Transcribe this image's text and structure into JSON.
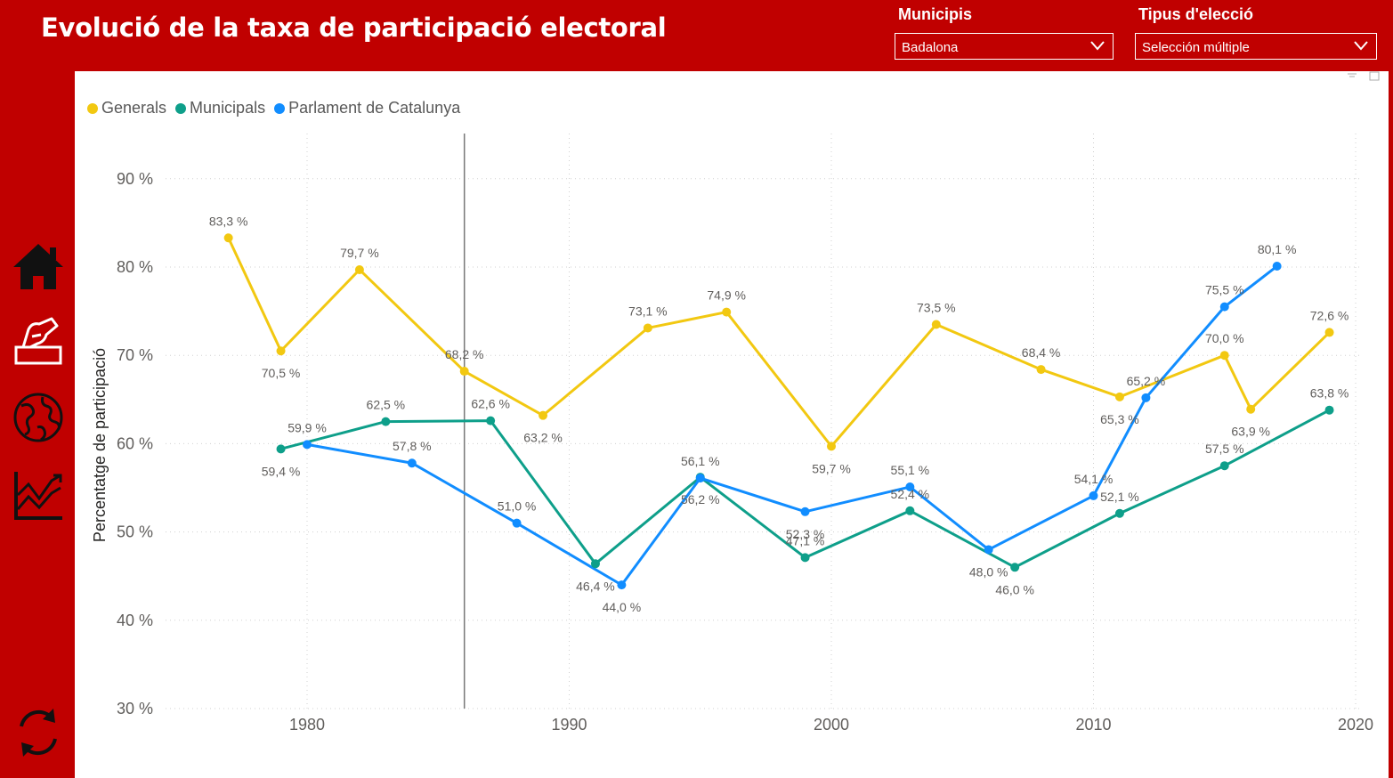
{
  "header": {
    "title": "Evolució de la taxa de participació electoral",
    "municipis_label": "Municipis",
    "municipis_value": "Badalona",
    "tipus_label": "Tipus d'elecció",
    "tipus_value": "Selección múltiple"
  },
  "sidebar": {
    "items": [
      {
        "icon": "home-icon"
      },
      {
        "icon": "ballot-vote-icon"
      },
      {
        "icon": "globe-icon"
      },
      {
        "icon": "chart-trend-icon"
      },
      {
        "icon": "refresh-icon"
      }
    ]
  },
  "colors": {
    "accent": "#c00000",
    "generals": "#F2C811",
    "municipals": "#0E9F8A",
    "parlament": "#118DFF"
  },
  "chart_data": {
    "type": "line",
    "title": "",
    "xlabel": "",
    "ylabel": "Percentatge de participació",
    "xlim": [
      1974,
      2020
    ],
    "ylim": [
      30,
      90
    ],
    "x_ticks": [
      1980,
      1990,
      2000,
      2010,
      2020
    ],
    "y_ticks": [
      30,
      40,
      50,
      60,
      70,
      80,
      90
    ],
    "y_tick_labels": [
      "30 %",
      "40 %",
      "50 %",
      "60 %",
      "70 %",
      "80 %",
      "90 %"
    ],
    "grid": true,
    "legend": "top-left",
    "reference_line_x": 1986,
    "series": [
      {
        "name": "Generals",
        "color": "#F2C811",
        "points": [
          {
            "x": 1977,
            "y": 83.3,
            "label": "83,3 %"
          },
          {
            "x": 1979,
            "y": 70.5,
            "label": "70,5 %"
          },
          {
            "x": 1982,
            "y": 79.7,
            "label": "79,7 %"
          },
          {
            "x": 1986,
            "y": 68.2,
            "label": "68,2 %"
          },
          {
            "x": 1989,
            "y": 63.2,
            "label": "63,2 %"
          },
          {
            "x": 1993,
            "y": 73.1,
            "label": "73,1 %"
          },
          {
            "x": 1996,
            "y": 74.9,
            "label": "74,9 %"
          },
          {
            "x": 2000,
            "y": 59.7,
            "label": "59,7 %"
          },
          {
            "x": 2004,
            "y": 73.5,
            "label": "73,5 %"
          },
          {
            "x": 2008,
            "y": 68.4,
            "label": "68,4 %"
          },
          {
            "x": 2011,
            "y": 65.3,
            "label": "65,3 %"
          },
          {
            "x": 2015,
            "y": 70.0,
            "label": "70,0 %"
          },
          {
            "x": 2016,
            "y": 63.9,
            "label": "63,9 %"
          },
          {
            "x": 2019,
            "y": 72.6,
            "label": "72,6 %"
          }
        ]
      },
      {
        "name": "Municipals",
        "color": "#0E9F8A",
        "points": [
          {
            "x": 1979,
            "y": 59.4,
            "label": "59,4 %"
          },
          {
            "x": 1983,
            "y": 62.5,
            "label": "62,5 %"
          },
          {
            "x": 1987,
            "y": 62.6,
            "label": "62,6 %"
          },
          {
            "x": 1991,
            "y": 46.4,
            "label": "46,4 %"
          },
          {
            "x": 1995,
            "y": 56.2,
            "label": "56,2 %"
          },
          {
            "x": 1999,
            "y": 47.1,
            "label": "47,1 %"
          },
          {
            "x": 2003,
            "y": 52.4,
            "label": "52,4 %"
          },
          {
            "x": 2007,
            "y": 46.0,
            "label": "46,0 %"
          },
          {
            "x": 2011,
            "y": 52.1,
            "label": "52,1 %"
          },
          {
            "x": 2015,
            "y": 57.5,
            "label": "57,5 %"
          },
          {
            "x": 2019,
            "y": 63.8,
            "label": "63,8 %"
          }
        ]
      },
      {
        "name": "Parlament de Catalunya",
        "color": "#118DFF",
        "points": [
          {
            "x": 1980,
            "y": 59.9,
            "label": "59,9 %"
          },
          {
            "x": 1984,
            "y": 57.8,
            "label": "57,8 %"
          },
          {
            "x": 1988,
            "y": 51.0,
            "label": "51,0 %"
          },
          {
            "x": 1992,
            "y": 44.0,
            "label": "44,0 %"
          },
          {
            "x": 1995,
            "y": 56.1,
            "label": "56,1 %"
          },
          {
            "x": 1999,
            "y": 52.3,
            "label": "52,3 %"
          },
          {
            "x": 2003,
            "y": 55.1,
            "label": "55,1 %"
          },
          {
            "x": 2006,
            "y": 48.0,
            "label": "48,0 %"
          },
          {
            "x": 2010,
            "y": 54.1,
            "label": "54,1 %"
          },
          {
            "x": 2012,
            "y": 65.2,
            "label": "65,2 %"
          },
          {
            "x": 2015,
            "y": 75.5,
            "label": "75,5 %"
          },
          {
            "x": 2017,
            "y": 80.1,
            "label": "80,1 %"
          }
        ]
      }
    ]
  }
}
